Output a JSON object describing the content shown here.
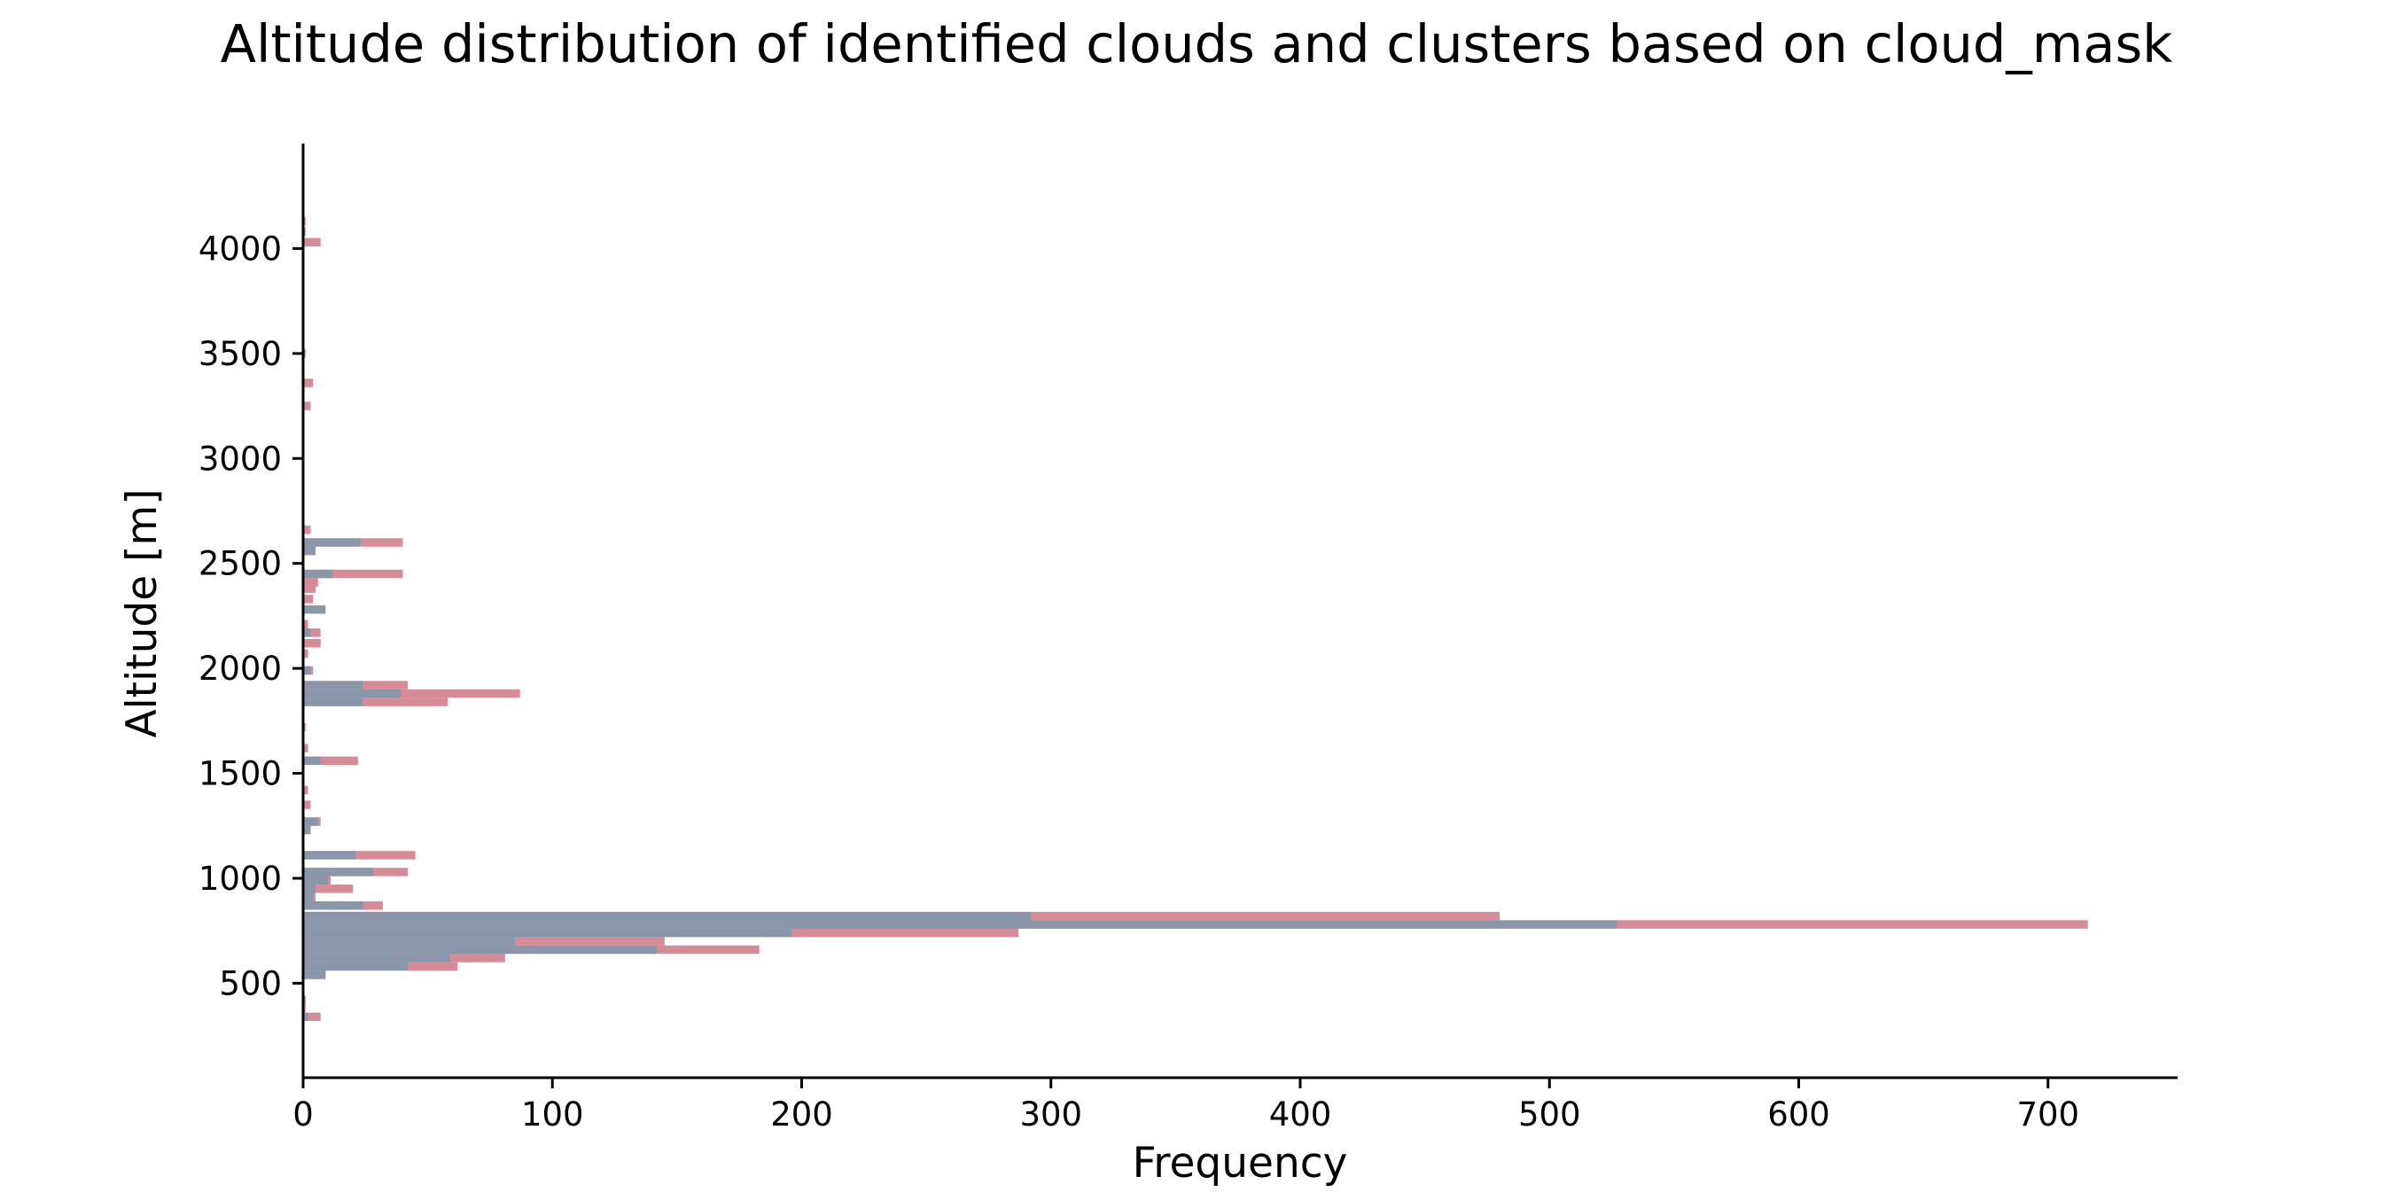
{
  "chart_data": {
    "type": "bar",
    "orientation": "horizontal",
    "title": "Altitude distribution of identified clouds and clusters based on cloud_mask",
    "xlabel": "Frequency",
    "ylabel": "Altitude [m]",
    "xlim": [
      0,
      752
    ],
    "ylim": [
      50,
      4500
    ],
    "xticks": [
      0,
      100,
      200,
      300,
      400,
      500,
      600,
      700
    ],
    "yticks": [
      500,
      1000,
      1500,
      2000,
      2500,
      3000,
      3500,
      4000
    ],
    "grid": false,
    "legend": "none",
    "bin_width_m": 40,
    "colors": {
      "pink": "#d68b97",
      "slate": "#8a97ab"
    },
    "series": [
      {
        "color": "pink",
        "bins": [
          {
            "y": 4130,
            "value": 1
          },
          {
            "y": 4030,
            "value": 7
          },
          {
            "y": 3360,
            "value": 4
          },
          {
            "y": 3250,
            "value": 3
          },
          {
            "y": 2660,
            "value": 3
          },
          {
            "y": 2600,
            "value": 40
          },
          {
            "y": 2560,
            "value": 5
          },
          {
            "y": 2450,
            "value": 40
          },
          {
            "y": 2410,
            "value": 6
          },
          {
            "y": 2380,
            "value": 5
          },
          {
            "y": 2330,
            "value": 4
          },
          {
            "y": 2210,
            "value": 2
          },
          {
            "y": 2170,
            "value": 7
          },
          {
            "y": 2120,
            "value": 7
          },
          {
            "y": 2070,
            "value": 2
          },
          {
            "y": 1990,
            "value": 4
          },
          {
            "y": 1920,
            "value": 42
          },
          {
            "y": 1880,
            "value": 87
          },
          {
            "y": 1840,
            "value": 58
          },
          {
            "y": 1720,
            "value": 1
          },
          {
            "y": 1620,
            "value": 2
          },
          {
            "y": 1560,
            "value": 22
          },
          {
            "y": 1420,
            "value": 2
          },
          {
            "y": 1350,
            "value": 3
          },
          {
            "y": 1270,
            "value": 7
          },
          {
            "y": 1230,
            "value": 3
          },
          {
            "y": 1110,
            "value": 45
          },
          {
            "y": 1030,
            "value": 42
          },
          {
            "y": 990,
            "value": 11
          },
          {
            "y": 950,
            "value": 20
          },
          {
            "y": 910,
            "value": 5
          },
          {
            "y": 870,
            "value": 32
          },
          {
            "y": 820,
            "value": 480
          },
          {
            "y": 780,
            "value": 716
          },
          {
            "y": 740,
            "value": 287
          },
          {
            "y": 700,
            "value": 145
          },
          {
            "y": 660,
            "value": 183
          },
          {
            "y": 620,
            "value": 81
          },
          {
            "y": 580,
            "value": 62
          },
          {
            "y": 540,
            "value": 9
          },
          {
            "y": 420,
            "value": 1
          },
          {
            "y": 380,
            "value": 1
          },
          {
            "y": 340,
            "value": 7
          }
        ]
      },
      {
        "color": "slate",
        "bins": [
          {
            "y": 4080,
            "value": 1
          },
          {
            "y": 3500,
            "value": 1
          },
          {
            "y": 2600,
            "value": 23
          },
          {
            "y": 2560,
            "value": 5
          },
          {
            "y": 2450,
            "value": 12
          },
          {
            "y": 2280,
            "value": 9
          },
          {
            "y": 2170,
            "value": 3
          },
          {
            "y": 1990,
            "value": 3
          },
          {
            "y": 1920,
            "value": 24
          },
          {
            "y": 1880,
            "value": 39
          },
          {
            "y": 1840,
            "value": 24
          },
          {
            "y": 1560,
            "value": 7
          },
          {
            "y": 1270,
            "value": 6
          },
          {
            "y": 1230,
            "value": 3
          },
          {
            "y": 1110,
            "value": 21
          },
          {
            "y": 1030,
            "value": 28
          },
          {
            "y": 990,
            "value": 10
          },
          {
            "y": 950,
            "value": 5
          },
          {
            "y": 910,
            "value": 4
          },
          {
            "y": 870,
            "value": 24
          },
          {
            "y": 820,
            "value": 292
          },
          {
            "y": 780,
            "value": 527
          },
          {
            "y": 740,
            "value": 196
          },
          {
            "y": 700,
            "value": 85
          },
          {
            "y": 660,
            "value": 142
          },
          {
            "y": 620,
            "value": 59
          },
          {
            "y": 580,
            "value": 42
          },
          {
            "y": 540,
            "value": 9
          },
          {
            "y": 420,
            "value": 1
          },
          {
            "y": 340,
            "value": 2
          }
        ]
      }
    ]
  }
}
